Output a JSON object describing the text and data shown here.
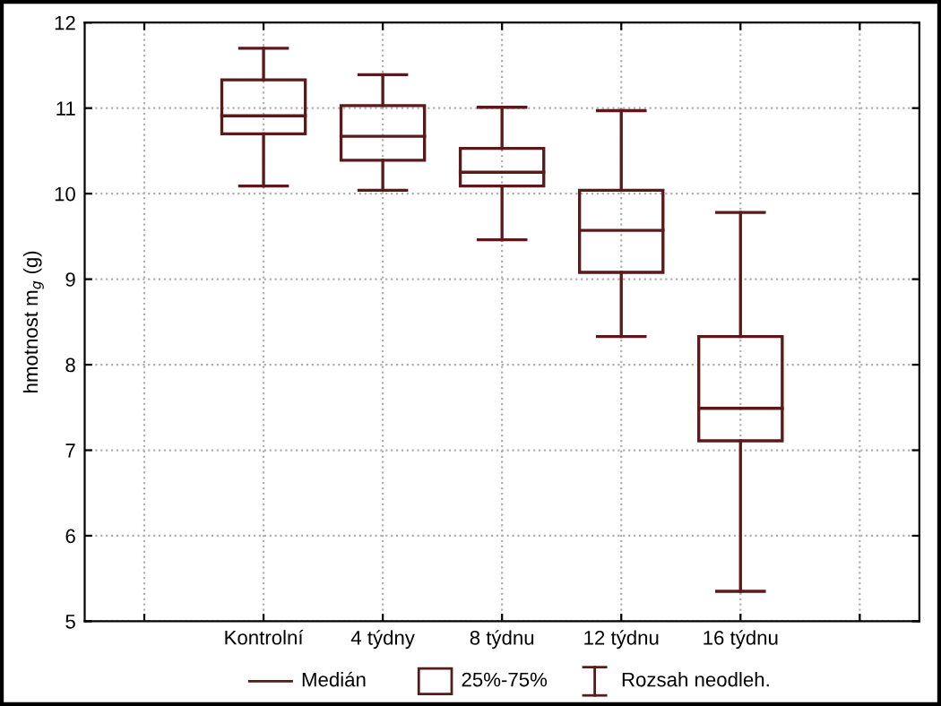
{
  "chart_data": {
    "type": "box",
    "ylabel": "hmotnost m$_{g}$ (g)",
    "categories": [
      null,
      "Kontrolní",
      "4 týdny",
      "8 týdnu",
      "12 týdnu",
      "16 týdnu",
      null
    ],
    "boxes": [
      null,
      {
        "low": 10.09,
        "q1": 10.7,
        "median": 10.91,
        "q3": 11.33,
        "high": 11.7
      },
      {
        "low": 10.04,
        "q1": 10.39,
        "median": 10.67,
        "q3": 11.03,
        "high": 11.39
      },
      {
        "low": 9.46,
        "q1": 10.09,
        "median": 10.25,
        "q3": 10.53,
        "high": 11.01
      },
      {
        "low": 8.33,
        "q1": 9.08,
        "median": 9.57,
        "q3": 10.04,
        "high": 10.97
      },
      {
        "low": 5.35,
        "q1": 7.11,
        "median": 7.49,
        "q3": 8.33,
        "high": 9.78
      },
      null
    ],
    "color": "#5a1a1a",
    "ylim": [
      5,
      12
    ],
    "yticks": [
      5,
      6,
      7,
      8,
      9,
      10,
      11,
      12
    ],
    "grid": true,
    "annotations": [
      "Medián",
      "25%-75%",
      "Rozsah neodleh."
    ]
  }
}
